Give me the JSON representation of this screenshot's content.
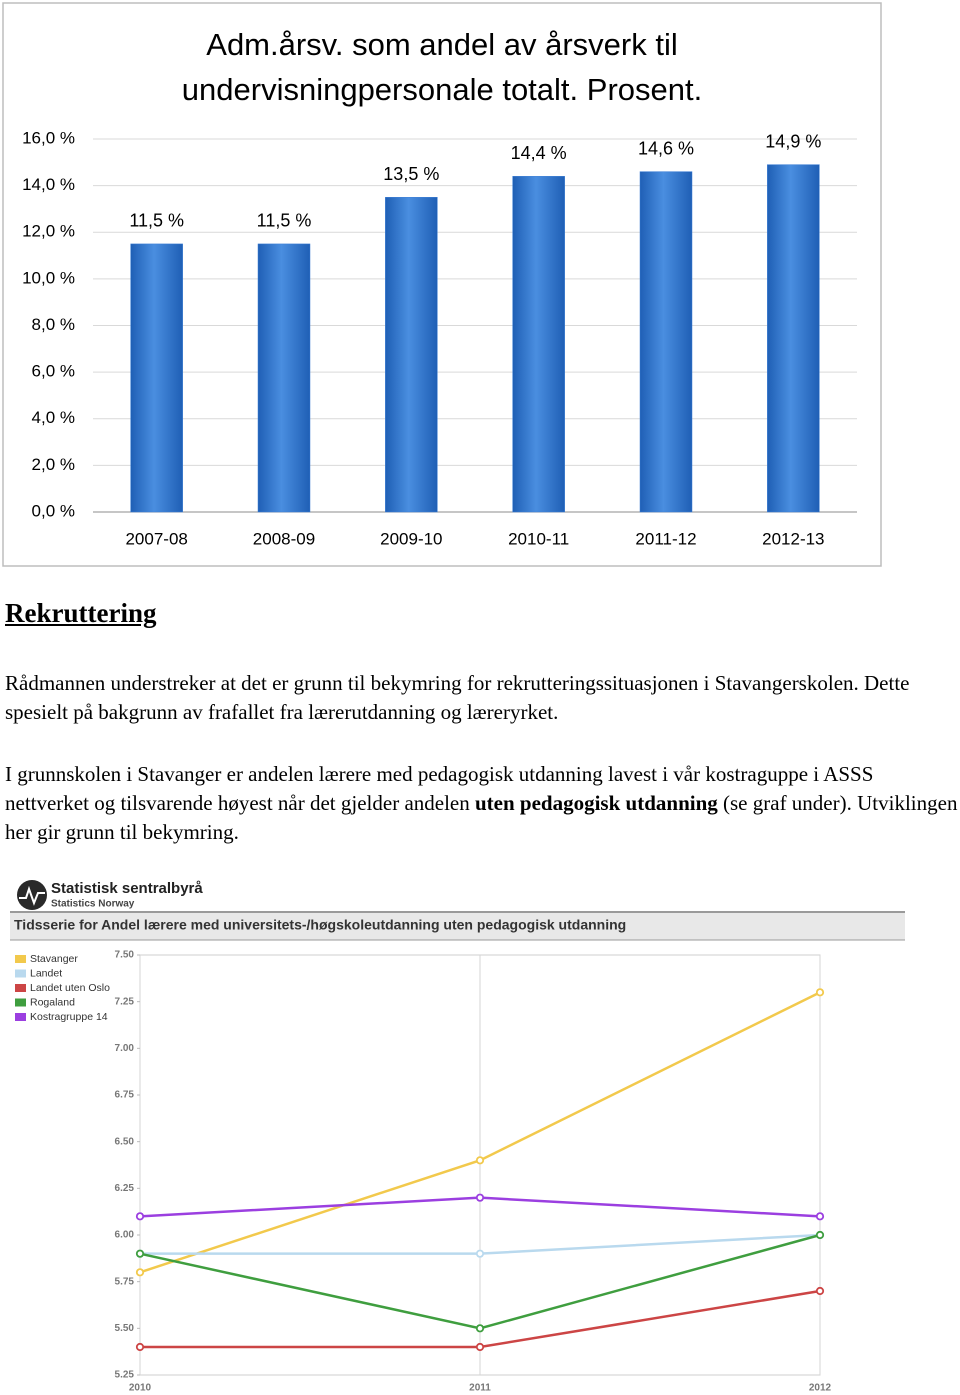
{
  "chart_data": [
    {
      "type": "bar",
      "title": "Adm.årsv. som andel av årsverk til undervisningpersonale totalt. Prosent.",
      "categories": [
        "2007-08",
        "2008-09",
        "2009-10",
        "2010-11",
        "2011-12",
        "2012-13"
      ],
      "values": [
        11.5,
        11.5,
        13.5,
        14.4,
        14.6,
        14.9
      ],
      "value_labels": [
        "11,5 %",
        "11,5 %",
        "13,5 %",
        "14,4 %",
        "14,6 %",
        "14,9 %"
      ],
      "color": "#3d7fd6",
      "ylim": [
        0,
        16
      ],
      "yticks": [
        {
          "value": 0,
          "label": "0,0 %"
        },
        {
          "value": 2,
          "label": "2,0 %"
        },
        {
          "value": 4,
          "label": "4,0 %"
        },
        {
          "value": 6,
          "label": "6,0 %"
        },
        {
          "value": 8,
          "label": "8,0 %"
        },
        {
          "value": 10,
          "label": "10,0 %"
        },
        {
          "value": 12,
          "label": "12,0 %"
        },
        {
          "value": 14,
          "label": "14,0 %"
        },
        {
          "value": 16,
          "label": "16,0 %"
        }
      ],
      "grid": true
    },
    {
      "type": "line",
      "title": "Tidsserie for Andel lærere med universitets-/høgskoleutdanning uten pedagogisk utdanning",
      "x": [
        2010,
        2011,
        2012
      ],
      "xlim": [
        2010,
        2012
      ],
      "xticks": [
        2010,
        2011,
        2012
      ],
      "ylim": [
        5.25,
        7.5
      ],
      "yticks": [
        {
          "value": 5.25,
          "label": "5.25"
        },
        {
          "value": 5.5,
          "label": "5.50"
        },
        {
          "value": 5.75,
          "label": "5.75"
        },
        {
          "value": 6,
          "label": "6.00"
        },
        {
          "value": 6.25,
          "label": "6.25"
        },
        {
          "value": 6.5,
          "label": "6.50"
        },
        {
          "value": 6.75,
          "label": "6.75"
        },
        {
          "value": 7,
          "label": "7.00"
        },
        {
          "value": 7.25,
          "label": "7.25"
        },
        {
          "value": 7.5,
          "label": "7.50"
        }
      ],
      "grid": "x",
      "legend": "top-left",
      "series": [
        {
          "name": "Stavanger",
          "color": "#f2c94c",
          "values": [
            5.8,
            6.4,
            7.3
          ]
        },
        {
          "name": "Landet",
          "color": "#b9d9ee",
          "values": [
            5.9,
            5.9,
            6.0
          ]
        },
        {
          "name": "Landet uten Oslo",
          "color": "#cc4545",
          "values": [
            5.4,
            5.4,
            5.7
          ]
        },
        {
          "name": "Rogaland",
          "color": "#3f9e3f",
          "values": [
            5.9,
            5.5,
            6.0
          ]
        },
        {
          "name": "Kostragruppe 14",
          "color": "#9b3fe0",
          "values": [
            6.1,
            6.2,
            6.1
          ]
        }
      ]
    }
  ],
  "document": {
    "logo": {
      "name": "Statistisk sentralbyrå",
      "subname": "Statistics Norway"
    },
    "heading": "Rekruttering",
    "paragraphs": [
      [
        "Rådmannen understreker at det er grunn til bekymring for rekrutteringssituasjonen i Stavangerskolen. Dette spesielt på bakgrunn av frafallet fra lærerutdanning og læreryrket."
      ],
      [
        "I grunnskolen i Stavanger er andelen lærere med pedagogisk utdanning lavest i vår kostraguppe i ASSS nettverket og tilsvarende høyest når det gjelder andelen ",
        "uten pedagogisk utdanning",
        " (se graf under). Utviklingen her gir grunn til bekymring."
      ]
    ]
  }
}
